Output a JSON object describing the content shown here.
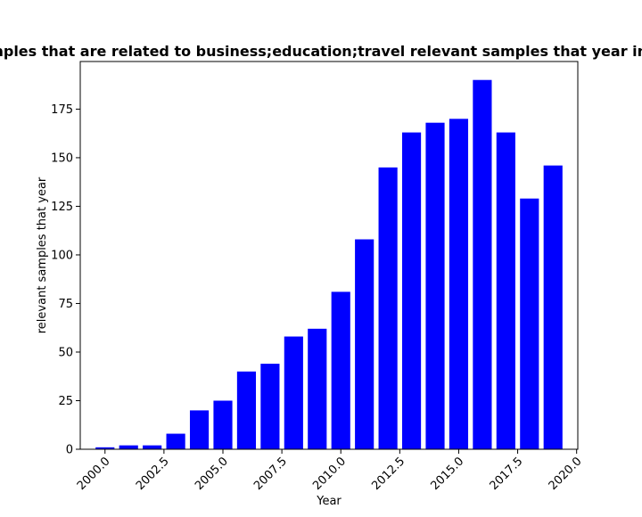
{
  "chart_data": {
    "type": "bar",
    "title": "Number of samples that are related to business;education;travel relevant samples that year in privacy policies",
    "xlabel": "Year",
    "ylabel": "relevant samples that year",
    "x": [
      2000,
      2001,
      2002,
      2003,
      2004,
      2005,
      2006,
      2007,
      2008,
      2009,
      2010,
      2011,
      2012,
      2013,
      2014,
      2015,
      2016,
      2017,
      2018,
      2019
    ],
    "values": [
      1,
      2,
      2,
      8,
      20,
      25,
      40,
      44,
      58,
      62,
      81,
      108,
      145,
      163,
      168,
      170,
      190,
      163,
      129,
      146
    ],
    "xlim": [
      1998.95,
      2020.05
    ],
    "ylim": [
      0,
      199.5
    ],
    "xticks": [
      "2000.0",
      "2002.5",
      "2005.0",
      "2007.5",
      "2010.0",
      "2012.5",
      "2015.0",
      "2017.5",
      "2020.0"
    ],
    "yticks": [
      "0",
      "25",
      "50",
      "75",
      "100",
      "125",
      "150",
      "175"
    ],
    "bar_color": "#0000ff",
    "grid": false,
    "legend": "none"
  }
}
